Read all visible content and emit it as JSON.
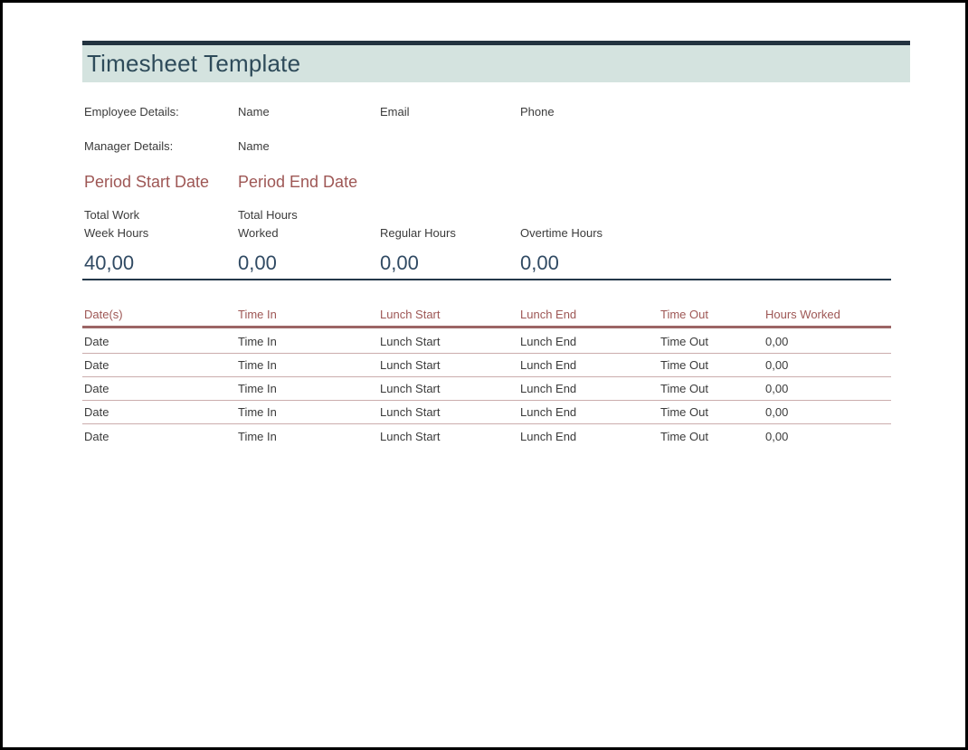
{
  "colors": {
    "top_bar": "#233340",
    "header_band": "#d4e3df",
    "title_text": "#2e4b5a",
    "accent_maroon": "#9e5755",
    "value_text": "#304a63",
    "dark_rule": "#24384a",
    "row_divider": "#cbadad",
    "body_text": "#3b3b3b"
  },
  "header": {
    "title": "Timesheet Template"
  },
  "details": {
    "employee_label": "Employee Details:",
    "employee_fields": [
      "Name",
      "Email",
      "Phone"
    ],
    "manager_label": "Manager Details:",
    "manager_fields": [
      "Name"
    ]
  },
  "period": {
    "start": "Period Start Date",
    "end": "Period End Date"
  },
  "summary": [
    {
      "label": "Total Work\nWeek Hours",
      "value": "40,00"
    },
    {
      "label": "Total Hours\nWorked",
      "value": "0,00"
    },
    {
      "label": "Regular Hours",
      "value": "0,00"
    },
    {
      "label": "Overtime Hours",
      "value": "0,00"
    }
  ],
  "table": {
    "headers": [
      "Date(s)",
      "Time In",
      "Lunch Start",
      "Lunch End",
      "Time Out",
      "Hours Worked"
    ],
    "rows": [
      [
        "Date",
        "Time In",
        "Lunch Start",
        "Lunch End",
        "Time Out",
        "0,00"
      ],
      [
        "Date",
        "Time In",
        "Lunch Start",
        "Lunch End",
        "Time Out",
        "0,00"
      ],
      [
        "Date",
        "Time In",
        "Lunch Start",
        "Lunch End",
        "Time Out",
        "0,00"
      ],
      [
        "Date",
        "Time In",
        "Lunch Start",
        "Lunch End",
        "Time Out",
        "0,00"
      ],
      [
        "Date",
        "Time In",
        "Lunch Start",
        "Lunch End",
        "Time Out",
        "0,00"
      ]
    ]
  }
}
